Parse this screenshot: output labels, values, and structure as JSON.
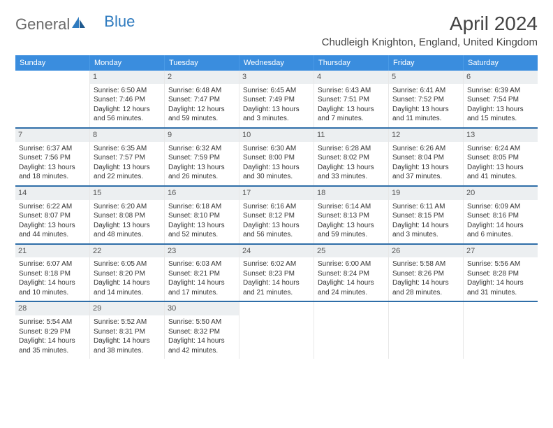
{
  "logo": {
    "part1": "General",
    "part2": "Blue"
  },
  "title": "April 2024",
  "location": "Chudleigh Knighton, England, United Kingdom",
  "colors": {
    "header_bg": "#3a8dde",
    "header_text": "#ffffff",
    "row_border": "#2f6ea8",
    "daynum_bg": "#eceff1",
    "text": "#333333",
    "logo_gray": "#6a6a6a",
    "logo_blue": "#2f7bbf"
  },
  "weekdays": [
    "Sunday",
    "Monday",
    "Tuesday",
    "Wednesday",
    "Thursday",
    "Friday",
    "Saturday"
  ],
  "weeks": [
    [
      {
        "empty": true
      },
      {
        "num": "1",
        "sunrise": "Sunrise: 6:50 AM",
        "sunset": "Sunset: 7:46 PM",
        "daylight1": "Daylight: 12 hours",
        "daylight2": "and 56 minutes."
      },
      {
        "num": "2",
        "sunrise": "Sunrise: 6:48 AM",
        "sunset": "Sunset: 7:47 PM",
        "daylight1": "Daylight: 12 hours",
        "daylight2": "and 59 minutes."
      },
      {
        "num": "3",
        "sunrise": "Sunrise: 6:45 AM",
        "sunset": "Sunset: 7:49 PM",
        "daylight1": "Daylight: 13 hours",
        "daylight2": "and 3 minutes."
      },
      {
        "num": "4",
        "sunrise": "Sunrise: 6:43 AM",
        "sunset": "Sunset: 7:51 PM",
        "daylight1": "Daylight: 13 hours",
        "daylight2": "and 7 minutes."
      },
      {
        "num": "5",
        "sunrise": "Sunrise: 6:41 AM",
        "sunset": "Sunset: 7:52 PM",
        "daylight1": "Daylight: 13 hours",
        "daylight2": "and 11 minutes."
      },
      {
        "num": "6",
        "sunrise": "Sunrise: 6:39 AM",
        "sunset": "Sunset: 7:54 PM",
        "daylight1": "Daylight: 13 hours",
        "daylight2": "and 15 minutes."
      }
    ],
    [
      {
        "num": "7",
        "sunrise": "Sunrise: 6:37 AM",
        "sunset": "Sunset: 7:56 PM",
        "daylight1": "Daylight: 13 hours",
        "daylight2": "and 18 minutes."
      },
      {
        "num": "8",
        "sunrise": "Sunrise: 6:35 AM",
        "sunset": "Sunset: 7:57 PM",
        "daylight1": "Daylight: 13 hours",
        "daylight2": "and 22 minutes."
      },
      {
        "num": "9",
        "sunrise": "Sunrise: 6:32 AM",
        "sunset": "Sunset: 7:59 PM",
        "daylight1": "Daylight: 13 hours",
        "daylight2": "and 26 minutes."
      },
      {
        "num": "10",
        "sunrise": "Sunrise: 6:30 AM",
        "sunset": "Sunset: 8:00 PM",
        "daylight1": "Daylight: 13 hours",
        "daylight2": "and 30 minutes."
      },
      {
        "num": "11",
        "sunrise": "Sunrise: 6:28 AM",
        "sunset": "Sunset: 8:02 PM",
        "daylight1": "Daylight: 13 hours",
        "daylight2": "and 33 minutes."
      },
      {
        "num": "12",
        "sunrise": "Sunrise: 6:26 AM",
        "sunset": "Sunset: 8:04 PM",
        "daylight1": "Daylight: 13 hours",
        "daylight2": "and 37 minutes."
      },
      {
        "num": "13",
        "sunrise": "Sunrise: 6:24 AM",
        "sunset": "Sunset: 8:05 PM",
        "daylight1": "Daylight: 13 hours",
        "daylight2": "and 41 minutes."
      }
    ],
    [
      {
        "num": "14",
        "sunrise": "Sunrise: 6:22 AM",
        "sunset": "Sunset: 8:07 PM",
        "daylight1": "Daylight: 13 hours",
        "daylight2": "and 44 minutes."
      },
      {
        "num": "15",
        "sunrise": "Sunrise: 6:20 AM",
        "sunset": "Sunset: 8:08 PM",
        "daylight1": "Daylight: 13 hours",
        "daylight2": "and 48 minutes."
      },
      {
        "num": "16",
        "sunrise": "Sunrise: 6:18 AM",
        "sunset": "Sunset: 8:10 PM",
        "daylight1": "Daylight: 13 hours",
        "daylight2": "and 52 minutes."
      },
      {
        "num": "17",
        "sunrise": "Sunrise: 6:16 AM",
        "sunset": "Sunset: 8:12 PM",
        "daylight1": "Daylight: 13 hours",
        "daylight2": "and 56 minutes."
      },
      {
        "num": "18",
        "sunrise": "Sunrise: 6:14 AM",
        "sunset": "Sunset: 8:13 PM",
        "daylight1": "Daylight: 13 hours",
        "daylight2": "and 59 minutes."
      },
      {
        "num": "19",
        "sunrise": "Sunrise: 6:11 AM",
        "sunset": "Sunset: 8:15 PM",
        "daylight1": "Daylight: 14 hours",
        "daylight2": "and 3 minutes."
      },
      {
        "num": "20",
        "sunrise": "Sunrise: 6:09 AM",
        "sunset": "Sunset: 8:16 PM",
        "daylight1": "Daylight: 14 hours",
        "daylight2": "and 6 minutes."
      }
    ],
    [
      {
        "num": "21",
        "sunrise": "Sunrise: 6:07 AM",
        "sunset": "Sunset: 8:18 PM",
        "daylight1": "Daylight: 14 hours",
        "daylight2": "and 10 minutes."
      },
      {
        "num": "22",
        "sunrise": "Sunrise: 6:05 AM",
        "sunset": "Sunset: 8:20 PM",
        "daylight1": "Daylight: 14 hours",
        "daylight2": "and 14 minutes."
      },
      {
        "num": "23",
        "sunrise": "Sunrise: 6:03 AM",
        "sunset": "Sunset: 8:21 PM",
        "daylight1": "Daylight: 14 hours",
        "daylight2": "and 17 minutes."
      },
      {
        "num": "24",
        "sunrise": "Sunrise: 6:02 AM",
        "sunset": "Sunset: 8:23 PM",
        "daylight1": "Daylight: 14 hours",
        "daylight2": "and 21 minutes."
      },
      {
        "num": "25",
        "sunrise": "Sunrise: 6:00 AM",
        "sunset": "Sunset: 8:24 PM",
        "daylight1": "Daylight: 14 hours",
        "daylight2": "and 24 minutes."
      },
      {
        "num": "26",
        "sunrise": "Sunrise: 5:58 AM",
        "sunset": "Sunset: 8:26 PM",
        "daylight1": "Daylight: 14 hours",
        "daylight2": "and 28 minutes."
      },
      {
        "num": "27",
        "sunrise": "Sunrise: 5:56 AM",
        "sunset": "Sunset: 8:28 PM",
        "daylight1": "Daylight: 14 hours",
        "daylight2": "and 31 minutes."
      }
    ],
    [
      {
        "num": "28",
        "sunrise": "Sunrise: 5:54 AM",
        "sunset": "Sunset: 8:29 PM",
        "daylight1": "Daylight: 14 hours",
        "daylight2": "and 35 minutes."
      },
      {
        "num": "29",
        "sunrise": "Sunrise: 5:52 AM",
        "sunset": "Sunset: 8:31 PM",
        "daylight1": "Daylight: 14 hours",
        "daylight2": "and 38 minutes."
      },
      {
        "num": "30",
        "sunrise": "Sunrise: 5:50 AM",
        "sunset": "Sunset: 8:32 PM",
        "daylight1": "Daylight: 14 hours",
        "daylight2": "and 42 minutes."
      },
      {
        "empty": true
      },
      {
        "empty": true
      },
      {
        "empty": true
      },
      {
        "empty": true
      }
    ]
  ]
}
